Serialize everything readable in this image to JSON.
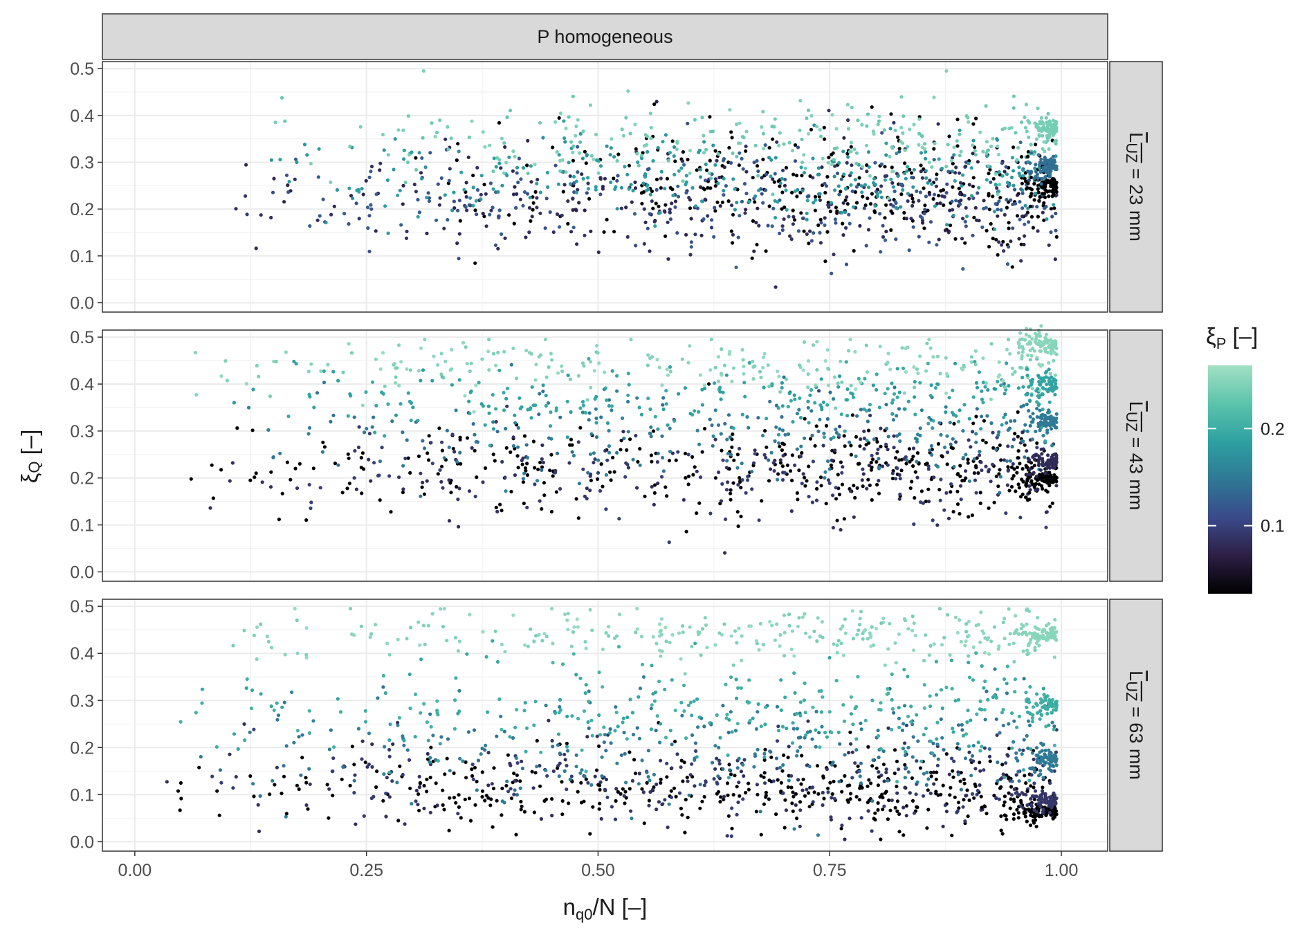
{
  "chart_data": {
    "type": "scatter",
    "facet_column_label": "P homogeneous",
    "panels": [
      {
        "row_label_text": "L",
        "row_label_subscript": "UZ",
        "row_label_rest": " = 23 mm",
        "bands": [
          {
            "xi_p": 0.03,
            "y_center": 0.25,
            "y_spread": 0.1,
            "x_min": 0.3,
            "n": 320
          },
          {
            "xi_p": 0.08,
            "y_center": 0.22,
            "y_spread": 0.1,
            "x_min": 0.08,
            "n": 300
          },
          {
            "xi_p": 0.12,
            "y_center": 0.22,
            "y_spread": 0.09,
            "x_min": 0.12,
            "n": 260
          },
          {
            "xi_p": 0.18,
            "y_center": 0.27,
            "y_spread": 0.08,
            "x_min": 0.1,
            "n": 300
          },
          {
            "xi_p": 0.24,
            "y_center": 0.34,
            "y_spread": 0.07,
            "x_min": 0.12,
            "n": 260
          }
        ],
        "clusters": [
          {
            "xi_p": 0.03,
            "y": 0.25,
            "x_from": 0.95,
            "n": 90
          },
          {
            "xi_p": 0.14,
            "y": 0.29,
            "x_from": 0.95,
            "n": 80
          },
          {
            "xi_p": 0.24,
            "y": 0.375,
            "x_from": 0.95,
            "n": 80
          }
        ]
      },
      {
        "row_label_text": "L",
        "row_label_subscript": "UZ",
        "row_label_rest": " = 43 mm",
        "bands": [
          {
            "xi_p": 0.03,
            "y_center": 0.22,
            "y_spread": 0.08,
            "x_min": 0.05,
            "n": 380
          },
          {
            "xi_p": 0.09,
            "y_center": 0.21,
            "y_spread": 0.09,
            "x_min": 0.05,
            "n": 260
          },
          {
            "xi_p": 0.15,
            "y_center": 0.29,
            "y_spread": 0.08,
            "x_min": 0.08,
            "n": 260
          },
          {
            "xi_p": 0.19,
            "y_center": 0.37,
            "y_spread": 0.06,
            "x_min": 0.05,
            "n": 260
          },
          {
            "xi_p": 0.25,
            "y_center": 0.44,
            "y_spread": 0.05,
            "x_min": 0.05,
            "n": 240
          }
        ],
        "clusters": [
          {
            "xi_p": 0.03,
            "y": 0.2,
            "x_from": 0.93,
            "n": 100
          },
          {
            "xi_p": 0.08,
            "y": 0.235,
            "x_from": 0.95,
            "n": 70
          },
          {
            "xi_p": 0.15,
            "y": 0.32,
            "x_from": 0.95,
            "n": 70
          },
          {
            "xi_p": 0.19,
            "y": 0.4,
            "x_from": 0.95,
            "n": 70
          },
          {
            "xi_p": 0.25,
            "y": 0.485,
            "x_from": 0.93,
            "n": 90
          }
        ]
      },
      {
        "row_label_text": "L",
        "row_label_subscript": "UZ",
        "row_label_rest": " = 63 mm",
        "bands": [
          {
            "xi_p": 0.03,
            "y_center": 0.11,
            "y_spread": 0.07,
            "x_min": 0.02,
            "n": 420
          },
          {
            "xi_p": 0.09,
            "y_center": 0.13,
            "y_spread": 0.08,
            "x_min": 0.02,
            "n": 280
          },
          {
            "xi_p": 0.15,
            "y_center": 0.2,
            "y_spread": 0.1,
            "x_min": 0.03,
            "n": 280
          },
          {
            "xi_p": 0.2,
            "y_center": 0.28,
            "y_spread": 0.09,
            "x_min": 0.03,
            "n": 300
          },
          {
            "xi_p": 0.25,
            "y_center": 0.44,
            "y_spread": 0.05,
            "x_min": 0.05,
            "n": 260
          }
        ],
        "clusters": [
          {
            "xi_p": 0.03,
            "y": 0.065,
            "x_from": 0.9,
            "n": 100
          },
          {
            "xi_p": 0.09,
            "y": 0.088,
            "x_from": 0.93,
            "n": 70
          },
          {
            "xi_p": 0.15,
            "y": 0.175,
            "x_from": 0.94,
            "n": 70
          },
          {
            "xi_p": 0.2,
            "y": 0.29,
            "x_from": 0.94,
            "n": 70
          },
          {
            "xi_p": 0.25,
            "y": 0.44,
            "x_from": 0.93,
            "n": 80
          }
        ]
      }
    ],
    "x_axis": {
      "label_main": "n",
      "label_sub": "q0",
      "label_rest": "/N [–]",
      "range": [
        -0.035,
        1.05
      ],
      "ticks": [
        0.0,
        0.25,
        0.5,
        0.75,
        1.0
      ],
      "tick_labels": [
        "0.00",
        "0.25",
        "0.50",
        "0.75",
        "1.00"
      ]
    },
    "y_axis": {
      "label_main": "ξ",
      "label_sub": "Q",
      "label_rest": " [–]",
      "range": [
        -0.02,
        0.515
      ],
      "ticks": [
        0.0,
        0.1,
        0.2,
        0.3,
        0.4,
        0.5
      ],
      "tick_labels": [
        "0.0",
        "0.1",
        "0.2",
        "0.3",
        "0.4",
        "0.5"
      ]
    },
    "legend": {
      "title_main": "ξ",
      "title_sub": "P",
      "title_rest": " [–]",
      "placement": "right",
      "range": [
        0.03,
        0.265
      ],
      "ticks": [
        0.1,
        0.2
      ],
      "tick_labels": [
        "0.1",
        "0.2"
      ],
      "colormap": [
        "#000000",
        "#2d1f45",
        "#3a4a8a",
        "#2f7895",
        "#2ea1a1",
        "#5cc4ab",
        "#a2e0c4"
      ]
    },
    "grid": true,
    "theme": "bw"
  }
}
